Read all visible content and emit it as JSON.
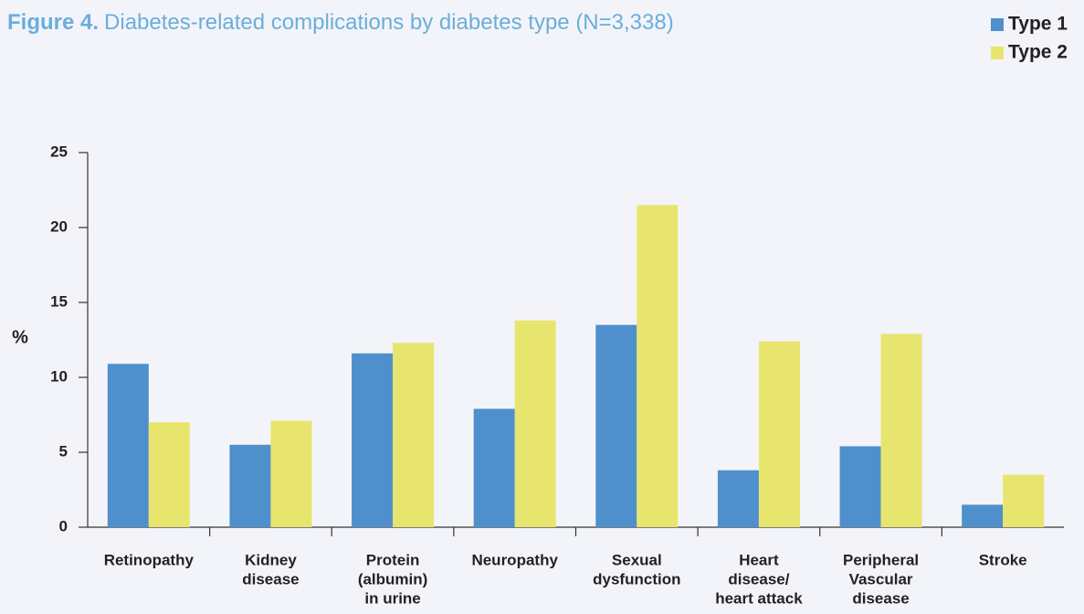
{
  "chart_data": {
    "type": "bar",
    "figure_label": "Figure 4.",
    "title": "Diabetes-related complications by diabetes type (N=3,338)",
    "ylabel": "%",
    "categories": [
      [
        "Retinopathy"
      ],
      [
        "Kidney",
        "disease"
      ],
      [
        "Protein",
        "(albumin)",
        "in urine"
      ],
      [
        "Neuropathy"
      ],
      [
        "Sexual",
        "dysfunction"
      ],
      [
        "Heart",
        "disease/",
        "heart attack"
      ],
      [
        "Peripheral",
        "Vascular",
        "disease"
      ],
      [
        "Stroke"
      ]
    ],
    "series": [
      {
        "name": "Type 1",
        "color": "#4f8fcc",
        "values": [
          10.9,
          5.5,
          11.6,
          7.9,
          13.5,
          3.8,
          5.4,
          1.5
        ]
      },
      {
        "name": "Type 2",
        "color": "#e8e56e",
        "values": [
          7.0,
          7.1,
          12.3,
          13.8,
          21.5,
          12.4,
          12.9,
          3.5
        ]
      }
    ],
    "ylim": [
      0,
      25
    ],
    "yticks": [
      0,
      5,
      10,
      15,
      20,
      25
    ],
    "legend": "top-right"
  }
}
